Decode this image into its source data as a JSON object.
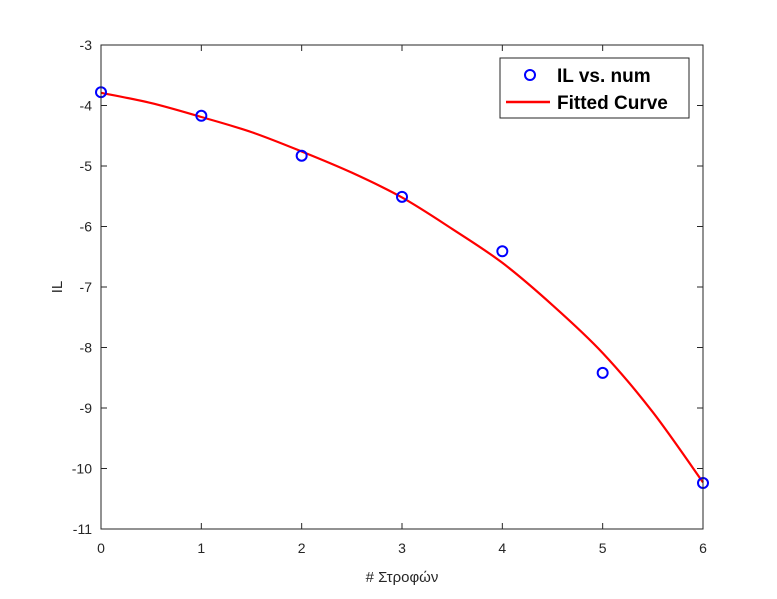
{
  "chart_data": {
    "type": "scatter",
    "title": "",
    "xlabel": "# Στροφών",
    "ylabel": "IL",
    "xlim": [
      0,
      6
    ],
    "ylim": [
      -11,
      -3
    ],
    "x_ticks": [
      0,
      1,
      2,
      3,
      4,
      5,
      6
    ],
    "y_ticks": [
      -11,
      -10,
      -9,
      -8,
      -7,
      -6,
      -5,
      -4,
      -3
    ],
    "x_tick_labels": [
      "0",
      "1",
      "2",
      "3",
      "4",
      "5",
      "6"
    ],
    "y_tick_labels": [
      "-11",
      "-10",
      "-9",
      "-8",
      "-7",
      "-6",
      "-5",
      "-4",
      "-3"
    ],
    "grid": false,
    "legend_position": "top-right",
    "series": [
      {
        "name": "IL vs. num",
        "type": "scatter",
        "marker": "circle",
        "color": "#0000ff",
        "x": [
          0,
          1,
          2,
          3,
          4,
          5,
          6
        ],
        "y": [
          -3.78,
          -4.17,
          -4.83,
          -5.51,
          -6.41,
          -8.42,
          -10.24
        ]
      },
      {
        "name": "Fitted Curve",
        "type": "line",
        "color": "#ff0000",
        "x": [
          0,
          0.5,
          1,
          1.5,
          2,
          2.5,
          3,
          3.5,
          4,
          4.5,
          5,
          5.5,
          6
        ],
        "y": [
          -3.79,
          -3.96,
          -4.19,
          -4.44,
          -4.76,
          -5.11,
          -5.52,
          -6.04,
          -6.6,
          -7.3,
          -8.09,
          -9.07,
          -10.23
        ]
      }
    ]
  }
}
